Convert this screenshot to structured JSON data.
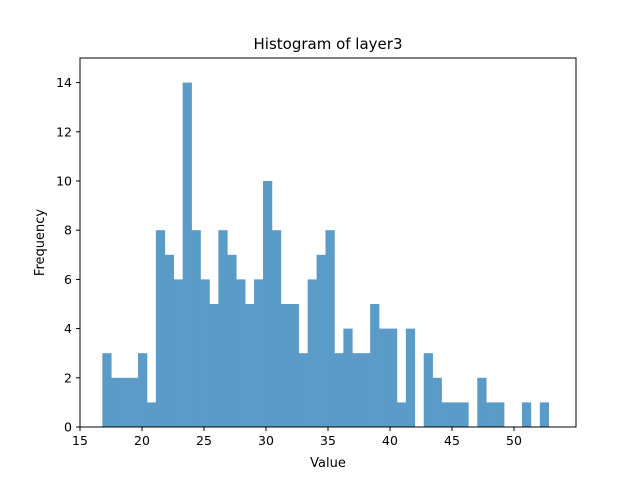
{
  "chart_data": {
    "type": "bar",
    "title": "Histogram of layer3",
    "xlabel": "Value",
    "ylabel": "Frequency",
    "xlim": [
      15,
      55
    ],
    "ylim": [
      0,
      15
    ],
    "xticks": [
      15,
      20,
      25,
      30,
      35,
      40,
      45,
      50
    ],
    "yticks": [
      0,
      2,
      4,
      6,
      8,
      10,
      12,
      14
    ],
    "bar_color": "#5b9bc8",
    "grid": false,
    "bin_edges": [
      16.8,
      17.52,
      18.24,
      18.96,
      19.68,
      20.4,
      21.12,
      21.84,
      22.56,
      23.28,
      24.0,
      24.72,
      25.44,
      26.16,
      26.88,
      27.6,
      28.32,
      29.04,
      29.76,
      30.48,
      31.2,
      31.92,
      32.64,
      33.36,
      34.08,
      34.8,
      35.52,
      36.24,
      36.96,
      37.68,
      38.4,
      39.12,
      39.84,
      40.56,
      41.28,
      42.0,
      42.72,
      43.44,
      44.16,
      44.88,
      45.6,
      46.32,
      47.04,
      47.76,
      48.48,
      49.2,
      49.92,
      50.64,
      51.36,
      52.08,
      52.8
    ],
    "counts": [
      3,
      2,
      2,
      2,
      3,
      1,
      8,
      7,
      6,
      14,
      8,
      6,
      5,
      8,
      7,
      6,
      5,
      6,
      10,
      8,
      5,
      5,
      3,
      6,
      7,
      8,
      3,
      4,
      3,
      3,
      5,
      4,
      4,
      1,
      4,
      0,
      3,
      2,
      1,
      1,
      1,
      0,
      2,
      1,
      1,
      0,
      0,
      1,
      0,
      1
    ]
  }
}
